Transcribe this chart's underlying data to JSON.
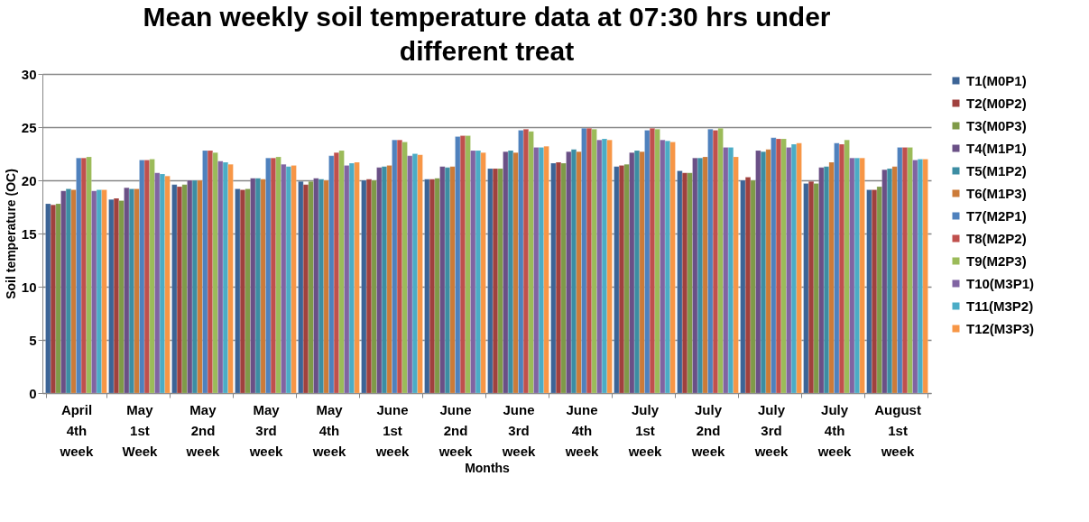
{
  "chart_data": {
    "type": "bar",
    "title": "Mean weekly soil temperature data at 07:30 hrs under different treat",
    "xlabel": "Months",
    "ylabel": "Soil temperature (OC)",
    "categories": [
      "April 4th week",
      "May 1st Week",
      "May 2nd week",
      "May 3rd week",
      "May 4th week",
      "June 1st week",
      "June 2nd week",
      "June 3rd week",
      "June 4th week",
      "July 1st week",
      "July 2nd week",
      "July 3rd week",
      "July 4th week",
      "August 1st week"
    ],
    "ylim": [
      0,
      30
    ],
    "yticks": [
      0,
      5,
      10,
      15,
      20,
      25,
      30
    ],
    "grid": "y",
    "legend": "right",
    "series": [
      {
        "name": "T1(M0P1)",
        "color": "#3c6496",
        "values": [
          17.8,
          18.2,
          19.6,
          19.2,
          19.9,
          20.0,
          20.1,
          21.1,
          21.6,
          21.3,
          20.9,
          20.0,
          19.7,
          19.1
        ]
      },
      {
        "name": "T2(M0P2)",
        "color": "#a0413e",
        "values": [
          17.7,
          18.3,
          19.4,
          19.1,
          19.6,
          20.1,
          20.1,
          21.1,
          21.7,
          21.4,
          20.7,
          20.3,
          19.9,
          19.1
        ]
      },
      {
        "name": "T3(M0P3)",
        "color": "#7f9a48",
        "values": [
          17.8,
          18.1,
          19.6,
          19.2,
          19.9,
          20.0,
          20.2,
          21.1,
          21.6,
          21.5,
          20.7,
          20.0,
          19.7,
          19.4
        ]
      },
      {
        "name": "T4(M1P1)",
        "color": "#6a5086",
        "values": [
          19.0,
          19.3,
          20.0,
          20.2,
          20.2,
          21.2,
          21.3,
          22.7,
          22.7,
          22.6,
          22.1,
          22.8,
          21.2,
          21.0
        ]
      },
      {
        "name": "T5(M1P2)",
        "color": "#3c8da3",
        "values": [
          19.2,
          19.2,
          20.0,
          20.2,
          20.1,
          21.3,
          21.2,
          22.8,
          22.9,
          22.8,
          22.1,
          22.7,
          21.3,
          21.1
        ]
      },
      {
        "name": "T6(M1P3)",
        "color": "#cc7b38",
        "values": [
          19.1,
          19.2,
          20.0,
          20.1,
          20.0,
          21.4,
          21.3,
          22.6,
          22.7,
          22.7,
          22.2,
          22.9,
          21.7,
          21.3
        ]
      },
      {
        "name": "T7(M2P1)",
        "color": "#4f81bd",
        "values": [
          22.1,
          21.9,
          22.8,
          22.1,
          22.3,
          23.8,
          24.1,
          24.7,
          24.9,
          24.7,
          24.8,
          24.0,
          23.5,
          23.1
        ]
      },
      {
        "name": "T8(M2P2)",
        "color": "#c0504d",
        "values": [
          22.1,
          21.9,
          22.8,
          22.1,
          22.6,
          23.8,
          24.2,
          24.8,
          24.9,
          24.9,
          24.7,
          23.9,
          23.4,
          23.1
        ]
      },
      {
        "name": "T9(M2P3)",
        "color": "#9bbb59",
        "values": [
          22.2,
          22.0,
          22.6,
          22.2,
          22.8,
          23.6,
          24.2,
          24.6,
          24.8,
          24.8,
          24.9,
          23.9,
          23.8,
          23.1
        ]
      },
      {
        "name": "T10(M3P1)",
        "color": "#8064a2",
        "values": [
          19.0,
          20.7,
          21.8,
          21.5,
          21.4,
          22.3,
          22.8,
          23.1,
          23.8,
          23.8,
          23.1,
          23.1,
          22.1,
          21.9
        ]
      },
      {
        "name": "T11(M3P2)",
        "color": "#4bacc6",
        "values": [
          19.1,
          20.6,
          21.7,
          21.3,
          21.6,
          22.5,
          22.8,
          23.1,
          23.9,
          23.7,
          23.1,
          23.4,
          22.1,
          22.0
        ]
      },
      {
        "name": "T12(M3P3)",
        "color": "#f79646",
        "values": [
          19.1,
          20.4,
          21.5,
          21.4,
          21.7,
          22.4,
          22.6,
          23.2,
          23.8,
          23.6,
          22.2,
          23.5,
          22.1,
          22.0
        ]
      }
    ]
  }
}
